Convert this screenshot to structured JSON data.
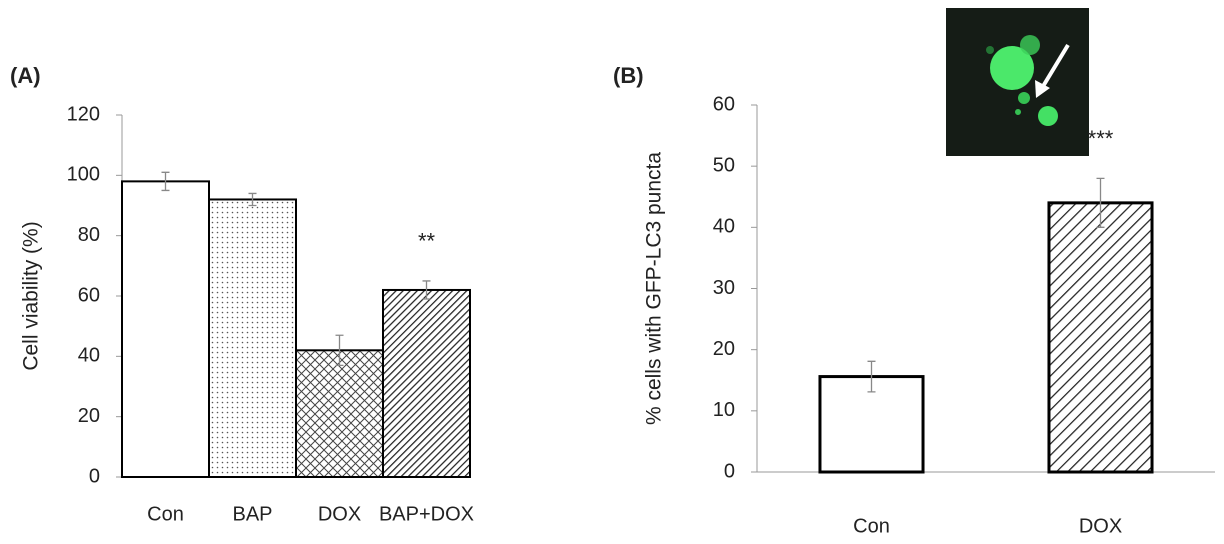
{
  "chart_data": [
    {
      "type": "bar",
      "title": "(A)",
      "y_label": "Cell viability (%)",
      "categories": [
        "Con",
        "BAP",
        "DOX",
        "BAP+DOX"
      ],
      "values": [
        98,
        92,
        42,
        62
      ],
      "errors": [
        3,
        2,
        5,
        3
      ],
      "annotations": [
        null,
        null,
        null,
        "**"
      ],
      "patterns": [
        "none",
        "dots",
        "crosshatch",
        "diagonal"
      ],
      "color": "#000000",
      "ylim": [
        0,
        120
      ],
      "yticks": [
        0,
        20,
        40,
        60,
        80,
        100,
        120
      ],
      "grid": false
    },
    {
      "type": "bar",
      "title": "(B)",
      "y_label": "% cells with GFP-LC3 puncta",
      "categories": [
        "Con",
        "DOX"
      ],
      "values": [
        15.6,
        44
      ],
      "errors": [
        2.5,
        4
      ],
      "annotations": [
        null,
        "***"
      ],
      "patterns": [
        "none",
        "diagonal-wide"
      ],
      "color": "#000000",
      "ylim": [
        0,
        60
      ],
      "yticks": [
        0,
        10,
        20,
        30,
        40,
        50,
        60
      ],
      "grid": false
    }
  ]
}
